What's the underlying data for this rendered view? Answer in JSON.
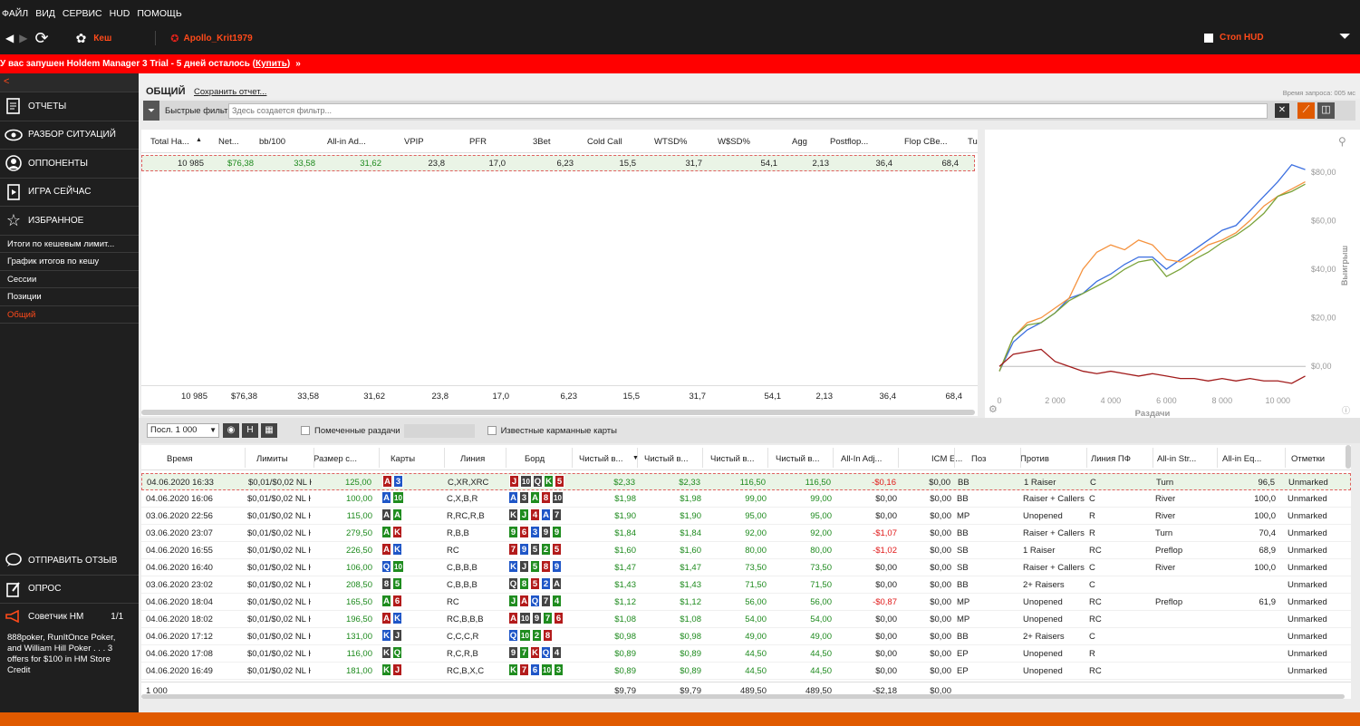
{
  "menu": [
    "ФАЙЛ",
    "ВИД",
    "СЕРВИС",
    "HUD",
    "ПОМОЩЬ"
  ],
  "toolbar": {
    "game": "Кеш",
    "player": "Apollo_Krit1979",
    "stop_hud": "Стоп HUD"
  },
  "trial": {
    "text": "У вас запушен Holdem Manager 3 Trial - 5 дней осталось (",
    "link": "Купить",
    ")": ")",
    "after": ")"
  },
  "sidebar": {
    "collapse": "<",
    "nav": [
      {
        "label": "ОТЧЕТЫ",
        "icon": "report-icon"
      },
      {
        "label": "РАЗБОР СИТУАЦИЙ",
        "icon": "eye-icon"
      },
      {
        "label": "ОППОНЕНТЫ",
        "icon": "person-icon"
      },
      {
        "label": "ИГРА СЕЙЧАС",
        "icon": "play-icon"
      },
      {
        "label": "ИЗБРАННОЕ",
        "icon": "star-icon"
      }
    ],
    "subitems": [
      "Итоги по кешевым лимит...",
      "График итогов по кешу",
      "Сессии",
      "Позиции",
      "Общий"
    ],
    "feedback": "ОТПРАВИТЬ ОТЗЫВ",
    "survey": "ОПРОС",
    "advisor": "Советчик HM",
    "advisor_page": "1/1",
    "advisor_text": "888poker, RunItOnce Poker, and William Hill Poker . . . 3 offers for $100 in HM Store Credit"
  },
  "header": {
    "title": "ОБЩИЙ",
    "save": "Сохранить отчет...",
    "query_time": "Время запроса: 005 мс"
  },
  "filter": {
    "label": "Быстрые фильт",
    "placeholder": "Здесь создается фильтр..."
  },
  "upper": {
    "headers": [
      "Total Ha...",
      "Net...",
      "bb/100",
      "All-in Ad...",
      "VPIP",
      "PFR",
      "3Bet",
      "Cold Call",
      "WTSD%",
      "W$SD%",
      "Agg",
      "Postflop...",
      "Flop CBe...",
      "Tu"
    ],
    "row": [
      "10 985",
      "$76,38",
      "33,58",
      "31,62",
      "23,8",
      "17,0",
      "6,23",
      "15,5",
      "31,7",
      "54,1",
      "2,13",
      "36,4",
      "68,4"
    ],
    "total": [
      "10 985",
      "$76,38",
      "33,58",
      "31,62",
      "23,8",
      "17,0",
      "6,23",
      "15,5",
      "31,7",
      "54,1",
      "2,13",
      "36,4",
      "68,4"
    ]
  },
  "chart_data": {
    "type": "line",
    "xlabel": "Раздачи",
    "ylabel": "Выигрыш",
    "xticks": [
      "0",
      "2 000",
      "4 000",
      "6 000",
      "8 000",
      "10 000"
    ],
    "yticks": [
      "$0,00",
      "$20,00",
      "$40,00",
      "$60,00",
      "$80,00"
    ],
    "xlim": [
      0,
      11000
    ],
    "ylim": [
      -10,
      90
    ],
    "series": [
      {
        "color": "#3b6fe0",
        "x": [
          0,
          500,
          1000,
          1500,
          2000,
          2500,
          3000,
          3500,
          4000,
          4500,
          5000,
          5500,
          6000,
          6500,
          7000,
          7500,
          8000,
          8500,
          9000,
          9500,
          10000,
          10500,
          10985
        ],
        "values": [
          -2,
          10,
          15,
          18,
          22,
          28,
          30,
          35,
          38,
          42,
          45,
          45,
          40,
          44,
          48,
          52,
          56,
          58,
          64,
          70,
          76,
          83,
          81
        ]
      },
      {
        "color": "#f5923e",
        "x": [
          0,
          500,
          1000,
          1500,
          2000,
          2500,
          3000,
          3500,
          4000,
          4500,
          5000,
          5500,
          6000,
          6500,
          7000,
          7500,
          8000,
          8500,
          9000,
          9500,
          10000,
          10500,
          10985
        ],
        "values": [
          -2,
          12,
          18,
          20,
          24,
          28,
          40,
          47,
          50,
          48,
          52,
          50,
          44,
          43,
          46,
          50,
          52,
          55,
          60,
          66,
          70,
          73,
          76
        ]
      },
      {
        "color": "#7aa33a",
        "x": [
          0,
          500,
          1000,
          1500,
          2000,
          2500,
          3000,
          3500,
          4000,
          4500,
          5000,
          5500,
          6000,
          6500,
          7000,
          7500,
          8000,
          8500,
          9000,
          9500,
          10000,
          10500,
          10985
        ],
        "values": [
          -2,
          12,
          17,
          18,
          22,
          27,
          30,
          33,
          36,
          40,
          43,
          44,
          37,
          40,
          44,
          47,
          51,
          54,
          58,
          63,
          70,
          72,
          75
        ]
      },
      {
        "color": "#a11a1a",
        "x": [
          0,
          500,
          1000,
          1500,
          2000,
          2500,
          3000,
          3500,
          4000,
          4500,
          5000,
          5500,
          6000,
          6500,
          7000,
          7500,
          8000,
          8500,
          9000,
          9500,
          10000,
          10500,
          10985
        ],
        "values": [
          0,
          5,
          6,
          7,
          2,
          0,
          -2,
          -3,
          -2,
          -3,
          -4,
          -3,
          -4,
          -5,
          -5,
          -6,
          -5,
          -6,
          -5,
          -6,
          -6,
          -7,
          -4
        ]
      }
    ]
  },
  "lowerctrl": {
    "select": "Посл. 1 000",
    "h": "H",
    "marked": "Помеченные раздачи",
    "known": "Известные карманные карты"
  },
  "lower": {
    "headers": [
      "Время",
      "Лимиты",
      "Размер с...",
      "Карты",
      "Линия",
      "Борд",
      "Чистый в...",
      "Чистый в...",
      "Чистый в...",
      "Чистый в...",
      "All-In Adj...",
      "ICM E...",
      "Поз",
      "Против",
      "Линия ПФ",
      "All-in Str...",
      "All-in Eq...",
      "Отметки"
    ],
    "rows": [
      [
        "04.06.2020 16:33",
        "$0,01/$0,02 NL H",
        "125,00",
        "A3",
        "C,XR,XRC",
        "J10QK5",
        "$2,33",
        "$2,33",
        "116,50",
        "116,50",
        "-$0,16",
        "$0,00",
        "BB",
        "1 Raiser",
        "C",
        "Turn",
        "96,5",
        "Unmarked"
      ],
      [
        "04.06.2020 16:06",
        "$0,01/$0,02 NL H",
        "100,00",
        "A10",
        "C,X,B,R",
        "A3A810",
        "$1,98",
        "$1,98",
        "99,00",
        "99,00",
        "$0,00",
        "$0,00",
        "BB",
        "Raiser + Callers",
        "C",
        "River",
        "100,0",
        "Unmarked"
      ],
      [
        "03.06.2020 22:56",
        "$0,01/$0,02 NL H",
        "115,00",
        "AA",
        "R,RC,R,B",
        "KJ4A7",
        "$1,90",
        "$1,90",
        "95,00",
        "95,00",
        "$0,00",
        "$0,00",
        "MP",
        "Unopened",
        "R",
        "River",
        "100,0",
        "Unmarked"
      ],
      [
        "03.06.2020 23:07",
        "$0,01/$0,02 NL H",
        "279,50",
        "AK",
        "R,B,B",
        "96399",
        "$1,84",
        "$1,84",
        "92,00",
        "92,00",
        "-$1,07",
        "$0,00",
        "BB",
        "Raiser + Callers",
        "R",
        "Turn",
        "70,4",
        "Unmarked"
      ],
      [
        "04.06.2020 16:55",
        "$0,01/$0,02 NL H",
        "226,50",
        "AK",
        "RC",
        "79525",
        "$1,60",
        "$1,60",
        "80,00",
        "80,00",
        "-$1,02",
        "$0,00",
        "SB",
        "1 Raiser",
        "RC",
        "Preflop",
        "68,9",
        "Unmarked"
      ],
      [
        "04.06.2020 16:40",
        "$0,01/$0,02 NL H",
        "106,00",
        "Q10",
        "C,B,B,B",
        "KJ589",
        "$1,47",
        "$1,47",
        "73,50",
        "73,50",
        "$0,00",
        "$0,00",
        "SB",
        "Raiser + Callers",
        "C",
        "River",
        "100,0",
        "Unmarked"
      ],
      [
        "03.06.2020 23:02",
        "$0,01/$0,02 NL H",
        "208,50",
        "85",
        "C,B,B,B",
        "Q852A",
        "$1,43",
        "$1,43",
        "71,50",
        "71,50",
        "$0,00",
        "$0,00",
        "BB",
        "2+ Raisers",
        "C",
        "",
        "",
        "Unmarked"
      ],
      [
        "04.06.2020 18:04",
        "$0,01/$0,02 NL H",
        "165,50",
        "A6",
        "RC",
        "JAQ74",
        "$1,12",
        "$1,12",
        "56,00",
        "56,00",
        "-$0,87",
        "$0,00",
        "MP",
        "Unopened",
        "RC",
        "Preflop",
        "61,9",
        "Unmarked"
      ],
      [
        "04.06.2020 18:02",
        "$0,01/$0,02 NL H",
        "196,50",
        "AK",
        "RC,B,B,B",
        "A10976",
        "$1,08",
        "$1,08",
        "54,00",
        "54,00",
        "$0,00",
        "$0,00",
        "MP",
        "Unopened",
        "RC",
        "",
        "",
        "Unmarked"
      ],
      [
        "04.06.2020 17:12",
        "$0,01/$0,02 NL H",
        "131,00",
        "KJ",
        "C,C,C,R",
        "Q1028",
        "$0,98",
        "$0,98",
        "49,00",
        "49,00",
        "$0,00",
        "$0,00",
        "BB",
        "2+ Raisers",
        "C",
        "",
        "",
        "Unmarked"
      ],
      [
        "04.06.2020 17:08",
        "$0,01/$0,02 NL H",
        "116,00",
        "KQ",
        "R,C,R,B",
        "97KQ4",
        "$0,89",
        "$0,89",
        "44,50",
        "44,50",
        "$0,00",
        "$0,00",
        "EP",
        "Unopened",
        "R",
        "",
        "",
        "Unmarked"
      ],
      [
        "04.06.2020 16:49",
        "$0,01/$0,02 NL H",
        "181,00",
        "KJ",
        "RC,B,X,C",
        "K76103",
        "$0,89",
        "$0,89",
        "44,50",
        "44,50",
        "$0,00",
        "$0,00",
        "EP",
        "Unopened",
        "RC",
        "",
        "",
        "Unmarked"
      ]
    ],
    "total": [
      "1 000",
      "",
      "",
      "",
      "",
      "",
      "$9,79",
      "$9,79",
      "489,50",
      "489,50",
      "-$2,18",
      "$0,00",
      "",
      "",
      "",
      "",
      "",
      ""
    ]
  }
}
